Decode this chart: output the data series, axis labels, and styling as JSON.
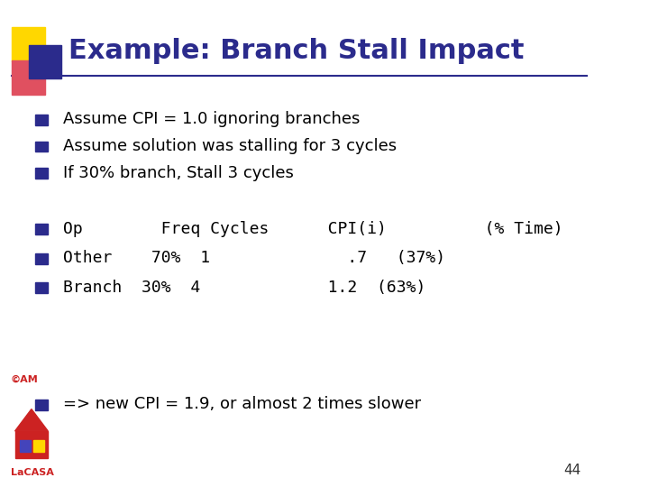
{
  "title": "Example: Branch Stall Impact",
  "title_color": "#2B2B8C",
  "title_fontsize": 22,
  "background_color": "#FFFFFF",
  "bullet_color": "#2B2B8C",
  "text_color": "#000000",
  "bullet_lines_top": [
    "Assume CPI = 1.0 ignoring branches",
    "Assume solution was stalling for 3 cycles",
    "If 30% branch, Stall 3 cycles"
  ],
  "bullet_lines_table": [
    "Op        Freq Cycles      CPI(i)          (% Time)",
    "Other    70%  1              .7   (37%)",
    "Branch  30%  4             1.2  (63%)"
  ],
  "bullet_lines_bottom": [
    "=> new CPI = 1.9, or almost 2 times slower"
  ],
  "page_number": "44",
  "page_number_color": "#333333",
  "lacasa_text": "LaCASA",
  "am_text": "©AM"
}
